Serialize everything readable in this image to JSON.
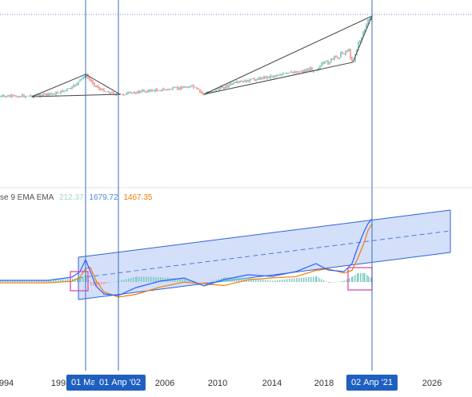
{
  "colors": {
    "up": "#26a69a",
    "down": "#ef5350",
    "price_line": "#555555",
    "macd_line": "#2962ff",
    "signal_line": "#f57c00",
    "vertical_line": "#3a6fb5",
    "channel_fill": "#9fb7f5",
    "channel_stroke": "#2f63d8",
    "highlight_box": "#d64eb0",
    "flag_bg": "#1f5fbf"
  },
  "legend": {
    "text": "se 9 EMA EMA",
    "histogram_value": "212.37",
    "macd_value": "1679.72",
    "signal_value": "1467.35",
    "histogram_color": "#a5d6cf",
    "macd_color": "#4f86e0",
    "signal_color": "#f57c00"
  },
  "axis": {
    "ticks": [
      "994",
      "1998",
      "2006",
      "2010",
      "2014",
      "2018",
      "2026"
    ],
    "flags": [
      "01 Мар '",
      "01 Апр '02",
      "02 Апр '21"
    ]
  }
}
